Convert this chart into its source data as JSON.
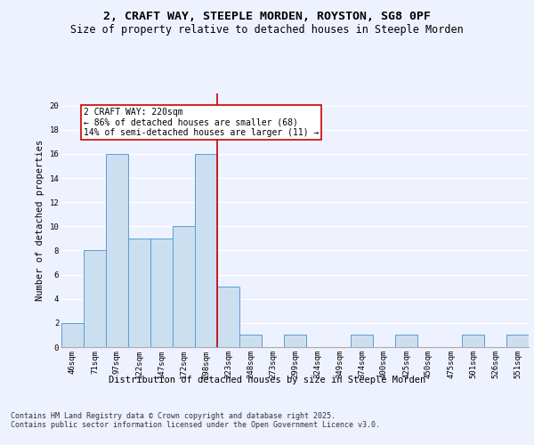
{
  "title_line1": "2, CRAFT WAY, STEEPLE MORDEN, ROYSTON, SG8 0PF",
  "title_line2": "Size of property relative to detached houses in Steeple Morden",
  "xlabel": "Distribution of detached houses by size in Steeple Morden",
  "ylabel": "Number of detached properties",
  "categories": [
    "46sqm",
    "71sqm",
    "97sqm",
    "122sqm",
    "147sqm",
    "172sqm",
    "198sqm",
    "223sqm",
    "248sqm",
    "273sqm",
    "299sqm",
    "324sqm",
    "349sqm",
    "374sqm",
    "400sqm",
    "425sqm",
    "450sqm",
    "475sqm",
    "501sqm",
    "526sqm",
    "551sqm"
  ],
  "values": [
    2,
    8,
    16,
    9,
    9,
    10,
    16,
    5,
    1,
    0,
    1,
    0,
    0,
    1,
    0,
    1,
    0,
    0,
    1,
    0,
    1
  ],
  "bar_color": "#ccdff0",
  "bar_edge_color": "#5b9bd5",
  "subject_line_color": "#cc0000",
  "annotation_text": "2 CRAFT WAY: 220sqm\n← 86% of detached houses are smaller (68)\n14% of semi-detached houses are larger (11) →",
  "annotation_box_color": "#cc0000",
  "ylim": [
    0,
    21
  ],
  "yticks": [
    0,
    2,
    4,
    6,
    8,
    10,
    12,
    14,
    16,
    18,
    20
  ],
  "background_color": "#eef2ff",
  "grid_color": "#ffffff",
  "footer": "Contains HM Land Registry data © Crown copyright and database right 2025.\nContains public sector information licensed under the Open Government Licence v3.0.",
  "title_fontsize": 9.5,
  "subtitle_fontsize": 8.5,
  "label_fontsize": 7.5,
  "tick_fontsize": 6.5,
  "footer_fontsize": 6.0,
  "annotation_fontsize": 7.0
}
